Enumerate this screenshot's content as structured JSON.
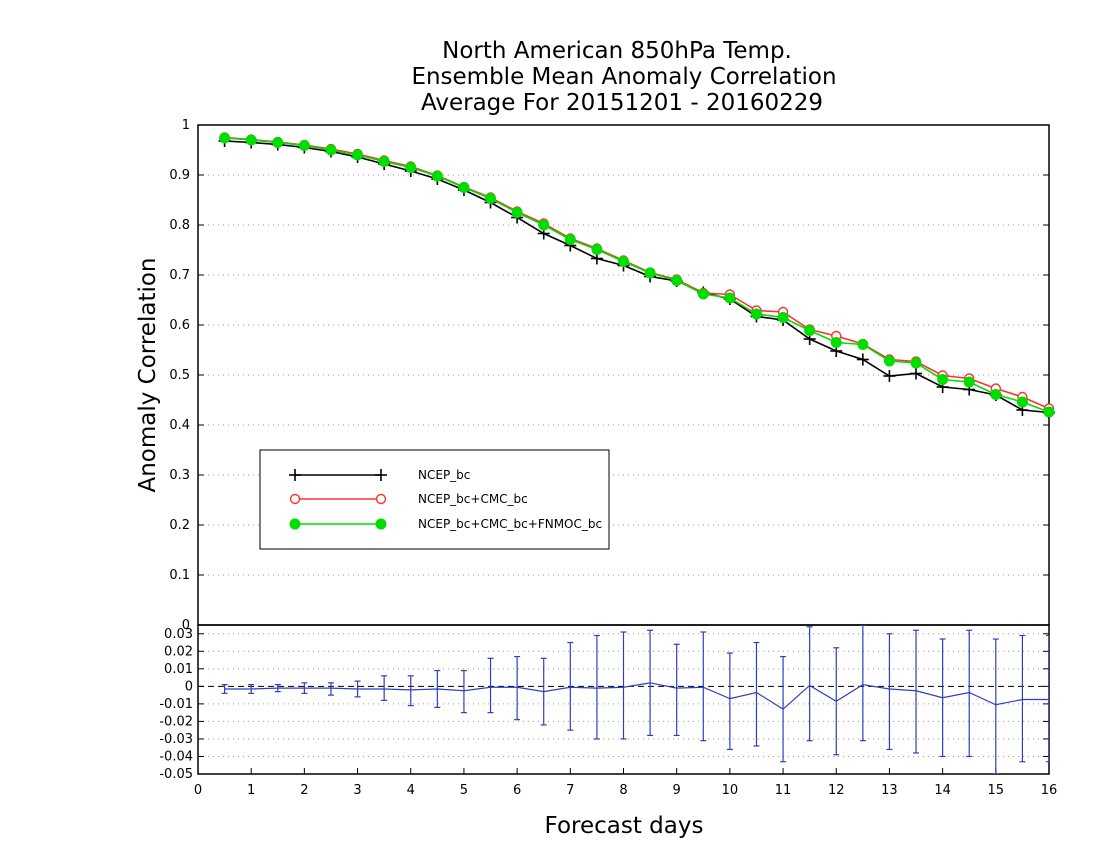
{
  "chart_data": [
    {
      "type": "line",
      "title": [
        "North American 850hPa Temp.",
        "Ensemble Mean Anomaly Correlation",
        "Average For 20151201 - 20160229"
      ],
      "ylabel": "Anomaly Correlation",
      "xlabel": "",
      "xlim": [
        0,
        16
      ],
      "ylim": [
        0,
        1
      ],
      "yticks": [
        "0",
        "0.1",
        "0.2",
        "0.3",
        "0.4",
        "0.5",
        "0.6",
        "0.7",
        "0.8",
        "0.9",
        "1"
      ],
      "grid": true,
      "legend_position": "lower-left",
      "x": [
        0.5,
        1,
        1.5,
        2,
        2.5,
        3,
        3.5,
        4,
        4.5,
        5,
        5.5,
        6,
        6.5,
        7,
        7.5,
        8,
        8.5,
        9,
        9.5,
        10,
        10.5,
        11,
        11.5,
        12,
        12.5,
        13,
        13.5,
        14,
        14.5,
        15,
        15.5,
        16
      ],
      "series": [
        {
          "name": "NCEP_bc",
          "color": "#000000",
          "marker": "plus",
          "values": [
            0.968,
            0.965,
            0.961,
            0.955,
            0.947,
            0.936,
            0.922,
            0.908,
            0.892,
            0.87,
            0.845,
            0.815,
            0.783,
            0.759,
            0.733,
            0.719,
            0.697,
            0.688,
            0.665,
            0.652,
            0.617,
            0.61,
            0.572,
            0.548,
            0.531,
            0.498,
            0.503,
            0.476,
            0.471,
            0.46,
            0.43,
            0.425
          ]
        },
        {
          "name": "NCEP_bc+CMC_bc",
          "color": "#ff3030",
          "marker": "open-circle",
          "values": [
            0.975,
            0.971,
            0.966,
            0.96,
            0.952,
            0.942,
            0.929,
            0.917,
            0.899,
            0.876,
            0.855,
            0.827,
            0.803,
            0.773,
            0.753,
            0.729,
            0.705,
            0.691,
            0.664,
            0.661,
            0.629,
            0.626,
            0.591,
            0.578,
            0.562,
            0.531,
            0.527,
            0.499,
            0.493,
            0.473,
            0.456,
            0.433
          ]
        },
        {
          "name": "NCEP_bc+CMC_bc+FNMOC_bc",
          "color": "#00dd00",
          "marker": "filled-circle",
          "values": [
            0.974,
            0.97,
            0.965,
            0.959,
            0.95,
            0.94,
            0.927,
            0.915,
            0.898,
            0.875,
            0.853,
            0.825,
            0.8,
            0.771,
            0.751,
            0.727,
            0.704,
            0.689,
            0.662,
            0.654,
            0.622,
            0.615,
            0.589,
            0.565,
            0.561,
            0.528,
            0.524,
            0.491,
            0.486,
            0.461,
            0.446,
            0.426
          ]
        }
      ]
    },
    {
      "type": "line",
      "xlabel": "Forecast days",
      "ylabel": "",
      "xlim": [
        0,
        16
      ],
      "ylim": [
        -0.05,
        0.035
      ],
      "xticks": [
        "0",
        "1",
        "2",
        "3",
        "4",
        "5",
        "6",
        "7",
        "8",
        "9",
        "10",
        "11",
        "12",
        "13",
        "14",
        "15",
        "16"
      ],
      "yticks": [
        "-0.05",
        "-0.04",
        "-0.03",
        "-0.02",
        "-0.01",
        "0",
        "0.01",
        "0.02",
        "0.03"
      ],
      "grid": true,
      "zero_line": "dashed",
      "x": [
        0.5,
        1,
        1.5,
        2,
        2.5,
        3,
        3.5,
        4,
        4.5,
        5,
        5.5,
        6,
        6.5,
        7,
        7.5,
        8,
        8.5,
        9,
        9.5,
        10,
        10.5,
        11,
        11.5,
        12,
        12.5,
        13,
        13.5,
        14,
        14.5,
        15,
        15.5,
        16
      ],
      "series": [
        {
          "color": "#2f3fbf",
          "marker": "error-bar",
          "values": [
            -0.0015,
            -0.0015,
            -0.001,
            -0.001,
            -0.001,
            -0.0015,
            -0.0015,
            -0.002,
            -0.0015,
            -0.0025,
            -0.0005,
            -0.0005,
            -0.003,
            -0.0005,
            -0.001,
            -0.0005,
            0.002,
            -0.001,
            -0.0005,
            -0.007,
            -0.0035,
            -0.013,
            0.0005,
            -0.0085,
            0.001,
            -0.0015,
            -0.0025,
            -0.0065,
            -0.0035,
            -0.0105,
            -0.0075,
            -0.0075
          ],
          "lower": [
            -0.004,
            -0.004,
            -0.003,
            -0.004,
            -0.005,
            -0.006,
            -0.008,
            -0.011,
            -0.012,
            -0.015,
            -0.015,
            -0.019,
            -0.022,
            -0.025,
            -0.03,
            -0.03,
            -0.028,
            -0.028,
            -0.031,
            -0.036,
            -0.034,
            -0.043,
            -0.031,
            -0.039,
            -0.031,
            -0.036,
            -0.038,
            -0.04,
            -0.04,
            -0.05,
            -0.043,
            -0.043
          ],
          "upper": [
            0.001,
            0.001,
            0.001,
            0.002,
            0.002,
            0.003,
            0.006,
            0.006,
            0.009,
            0.009,
            0.016,
            0.017,
            0.016,
            0.025,
            0.029,
            0.031,
            0.032,
            0.024,
            0.031,
            0.019,
            0.025,
            0.017,
            0.034,
            0.022,
            0.035,
            0.03,
            0.032,
            0.027,
            0.032,
            0.027,
            0.029,
            0.029
          ]
        }
      ]
    }
  ]
}
